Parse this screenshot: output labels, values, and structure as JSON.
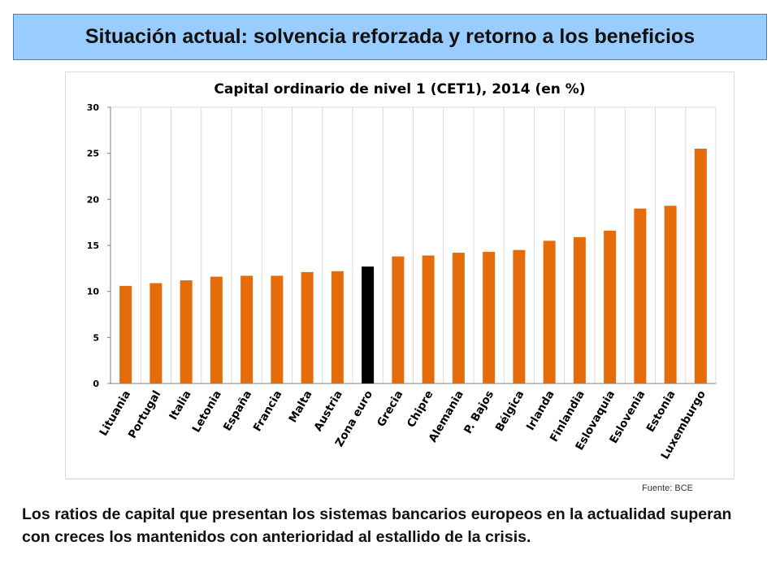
{
  "header": {
    "title": "Situación actual: solvencia reforzada y retorno a los beneficios"
  },
  "chart_data": {
    "type": "bar",
    "title": "Capital ordinario de nivel 1 (CET1), 2014 (en %)",
    "categories": [
      "Lituania",
      "Portugal",
      "Italia",
      "Letonia",
      "España",
      "Francia",
      "Malta",
      "Austria",
      "Zona euro",
      "Grecia",
      "Chipre",
      "Alemania",
      "P. Bajos",
      "Bélgica",
      "Irlanda",
      "Finlandia",
      "Eslovaquia",
      "Eslovenia",
      "Estonia",
      "Luxemburgo"
    ],
    "values": [
      10.6,
      10.9,
      11.2,
      11.6,
      11.7,
      11.7,
      12.1,
      12.2,
      12.7,
      13.8,
      13.9,
      14.2,
      14.3,
      14.5,
      15.5,
      15.9,
      16.6,
      19.0,
      19.3,
      25.5
    ],
    "ylim": [
      0,
      30
    ],
    "yticks": [
      0,
      5,
      10,
      15,
      20,
      25,
      30
    ],
    "bar_color": "#e46c0a",
    "highlight_color": "#000000",
    "highlight_category": "Zona euro",
    "grid": true
  },
  "source": "Fuente: BCE",
  "caption": "Los ratios de capital que presentan los sistemas bancarios europeos en la actualidad superan con creces los mantenidos con anterioridad al estallido de la crisis."
}
